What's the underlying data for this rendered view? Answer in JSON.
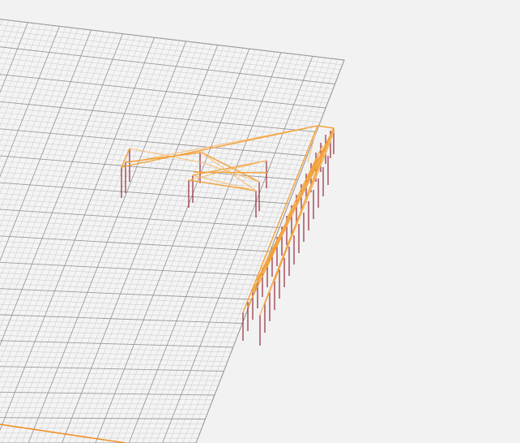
{
  "viewport": {
    "background_color": "#f2f2f2",
    "grid": {
      "plane_color": "#f4f4f4",
      "minor_line_color": "#cfcfcf",
      "major_line_color": "#9a9a9a",
      "major_every": 5
    },
    "colors": {
      "member": "#f2a23a",
      "member_light": "#f6c07a",
      "support": "#9a3a4a",
      "ground_line": "#f08a1a"
    }
  }
}
